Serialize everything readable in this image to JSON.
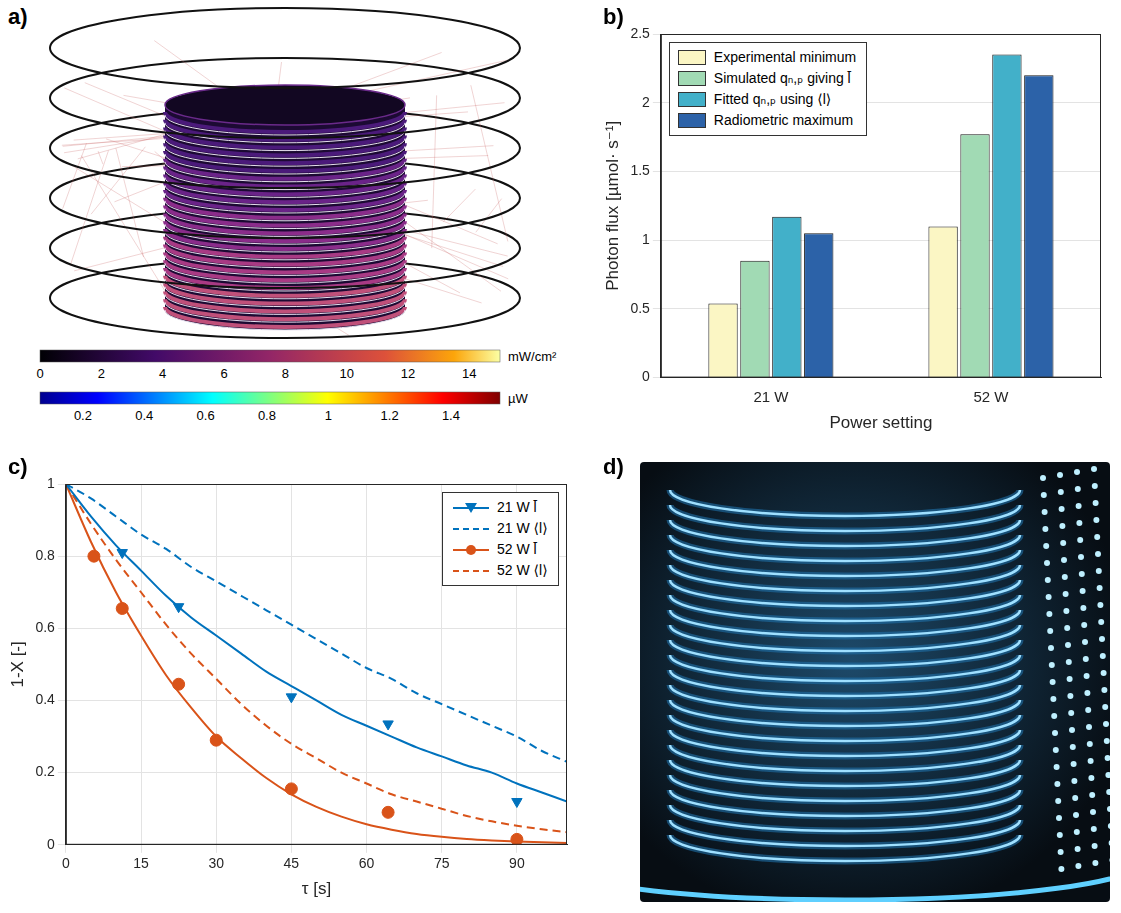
{
  "panels": [
    {
      "panel": "a)",
      "colorbars": [
        {
          "label": "mW/cm²",
          "range": [
            0,
            15
          ],
          "ticks": [
            0,
            2,
            4,
            6,
            8,
            10,
            12,
            14
          ]
        },
        {
          "label": "µW",
          "range": [
            0.06,
            1.56
          ],
          "ticks": [
            0.2,
            0.4,
            0.6,
            0.8,
            1,
            1.2,
            1.4
          ]
        }
      ]
    },
    {
      "panel": "d)"
    }
  ],
  "chart_data": [
    {
      "panel": "b)",
      "type": "bar",
      "categories": [
        "21 W",
        "52 W"
      ],
      "x_label": "Power setting",
      "y_label": "Photon flux [µmol· s⁻¹]",
      "ylim": [
        0,
        2.5
      ],
      "yticks": [
        0,
        0.5,
        1,
        1.5,
        2,
        2.5
      ],
      "grid": true,
      "legend": "top-left",
      "series": [
        {
          "name": "Experimental minimum",
          "color": "#fbf6c4",
          "values": [
            0.54,
            1.1
          ]
        },
        {
          "name": "Simulated qₙ,ₚ giving l̄",
          "color": "#a1dab4",
          "values": [
            0.85,
            1.77
          ]
        },
        {
          "name": "Fitted qₙ,ₚ using ⟨l⟩",
          "color": "#42b0c9",
          "values": [
            1.17,
            2.35
          ]
        },
        {
          "name": "Radiometric maximum",
          "color": "#2c62a8",
          "values": [
            1.05,
            2.2
          ]
        }
      ]
    },
    {
      "panel": "c)",
      "type": "line",
      "x": [
        0,
        5,
        10,
        15,
        20,
        25,
        30,
        35,
        40,
        45,
        50,
        55,
        60,
        65,
        70,
        75,
        80,
        85,
        90,
        95,
        100
      ],
      "x_label": "τ [s]",
      "y_label": "1-X [-]",
      "xlim": [
        0,
        100
      ],
      "xticks": [
        0,
        15,
        30,
        45,
        60,
        75,
        90
      ],
      "ylim": [
        0,
        1
      ],
      "yticks": [
        0,
        0.2,
        0.4,
        0.6,
        0.8,
        1
      ],
      "grid": true,
      "legend": "top-right",
      "series": [
        {
          "name": "21 W l̄",
          "color": "#0072bd",
          "line_style": "solid",
          "marker": "triangle-down",
          "values": [
            1,
            0.91,
            0.83,
            0.76,
            0.69,
            0.63,
            0.58,
            0.53,
            0.48,
            0.44,
            0.4,
            0.36,
            0.33,
            0.3,
            0.27,
            0.245,
            0.22,
            0.2,
            0.17,
            0.145,
            0.12
          ],
          "points": {
            "x": [
              11.25,
              22.5,
              45,
              64.3,
              90
            ],
            "values": [
              0.81,
              0.66,
              0.41,
              0.335,
              0.12
            ]
          }
        },
        {
          "name": "21 W ⟨l⟩",
          "color": "#0072bd",
          "line_style": "dashed",
          "marker": "none",
          "values": [
            1,
            0.96,
            0.91,
            0.86,
            0.82,
            0.77,
            0.73,
            0.69,
            0.65,
            0.61,
            0.57,
            0.53,
            0.49,
            0.46,
            0.42,
            0.39,
            0.36,
            0.33,
            0.3,
            0.26,
            0.23
          ]
        },
        {
          "name": "52 W l̄",
          "color": "#d95319",
          "line_style": "solid",
          "marker": "circle",
          "values": [
            1,
            0.84,
            0.7,
            0.58,
            0.47,
            0.38,
            0.3,
            0.24,
            0.185,
            0.14,
            0.105,
            0.078,
            0.057,
            0.042,
            0.03,
            0.022,
            0.016,
            0.012,
            0.009,
            0.007,
            0.005
          ],
          "points": {
            "x": [
              5.6,
              11.25,
              22.5,
              30,
              45,
              64.3,
              90
            ],
            "values": [
              0.8,
              0.655,
              0.445,
              0.29,
              0.155,
              0.09,
              0.015
            ]
          }
        },
        {
          "name": "52 W ⟨l⟩",
          "color": "#d95319",
          "line_style": "dashed",
          "marker": "none",
          "values": [
            1,
            0.89,
            0.79,
            0.7,
            0.61,
            0.53,
            0.46,
            0.39,
            0.33,
            0.28,
            0.24,
            0.2,
            0.17,
            0.14,
            0.12,
            0.1,
            0.08,
            0.065,
            0.053,
            0.043,
            0.035
          ]
        }
      ]
    }
  ]
}
